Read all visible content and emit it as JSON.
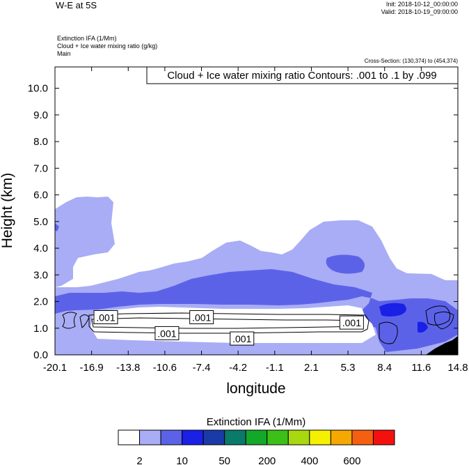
{
  "header": {
    "title": "W-E at 5S",
    "init": "Init: 2018-10-12_00:00:00",
    "valid": "Valid: 2018-10-19_09:00:00",
    "fields": [
      "Extinction IFA   (1/Mm)",
      "Cloud + Ice water mixing ratio   (g/kg)",
      "Main"
    ],
    "cross_section": "Cross-Section: (130,374) to (454,374)"
  },
  "chart_data": {
    "type": "area",
    "title": "",
    "xlabel": "longitude",
    "ylabel": "Height (km)",
    "xlim": [
      -20.1,
      14.8
    ],
    "ylim": [
      0,
      10.8
    ],
    "x_ticks": [
      "-20.1",
      "-16.9",
      "-13.8",
      "-10.6",
      "-7.4",
      "-4.2",
      "-1.1",
      "2.1",
      "5.3",
      "8.4",
      "11.6",
      "14.8"
    ],
    "y_ticks": [
      "0.0",
      "1.0",
      "2.0",
      "3.0",
      "4.0",
      "5.0",
      "6.0",
      "7.0",
      "8.0",
      "9.0",
      "10.0"
    ],
    "contour_info": "Cloud + Ice water mixing ratio Contours: .001 to .1 by .099",
    "contour_labels": [
      {
        "text": ".001",
        "x": -15.7,
        "y": 1.4
      },
      {
        "text": ".001",
        "x": -10.4,
        "y": 0.8
      },
      {
        "text": ".001",
        "x": -7.4,
        "y": 1.4
      },
      {
        "text": ".001",
        "x": -3.9,
        "y": 0.6
      },
      {
        "text": ".001",
        "x": 5.6,
        "y": 1.2
      }
    ],
    "shaded_regions": [
      {
        "level": "2-10",
        "color": "#a8adf5",
        "description": "broad light-blue extinction layer up to ~5.5 km"
      },
      {
        "level": "10-50",
        "color": "#5c62e8",
        "description": "mid layer 1.6-3.2 km"
      },
      {
        "level": "50-200",
        "color": "#1a20e6",
        "description": "small cores near 1.5 km east of 8.4"
      }
    ],
    "colorbar": {
      "title": "Extinction IFA  (1/Mm)",
      "colors": [
        "#ffffff",
        "#a8adf5",
        "#5c62e8",
        "#1a20e6",
        "#1a3aa8",
        "#0a7a6a",
        "#12a82a",
        "#3cc018",
        "#a8d810",
        "#f5f000",
        "#f5a800",
        "#f56010",
        "#f51010"
      ],
      "labels": [
        "2",
        "10",
        "50",
        "200",
        "400",
        "600"
      ]
    }
  }
}
